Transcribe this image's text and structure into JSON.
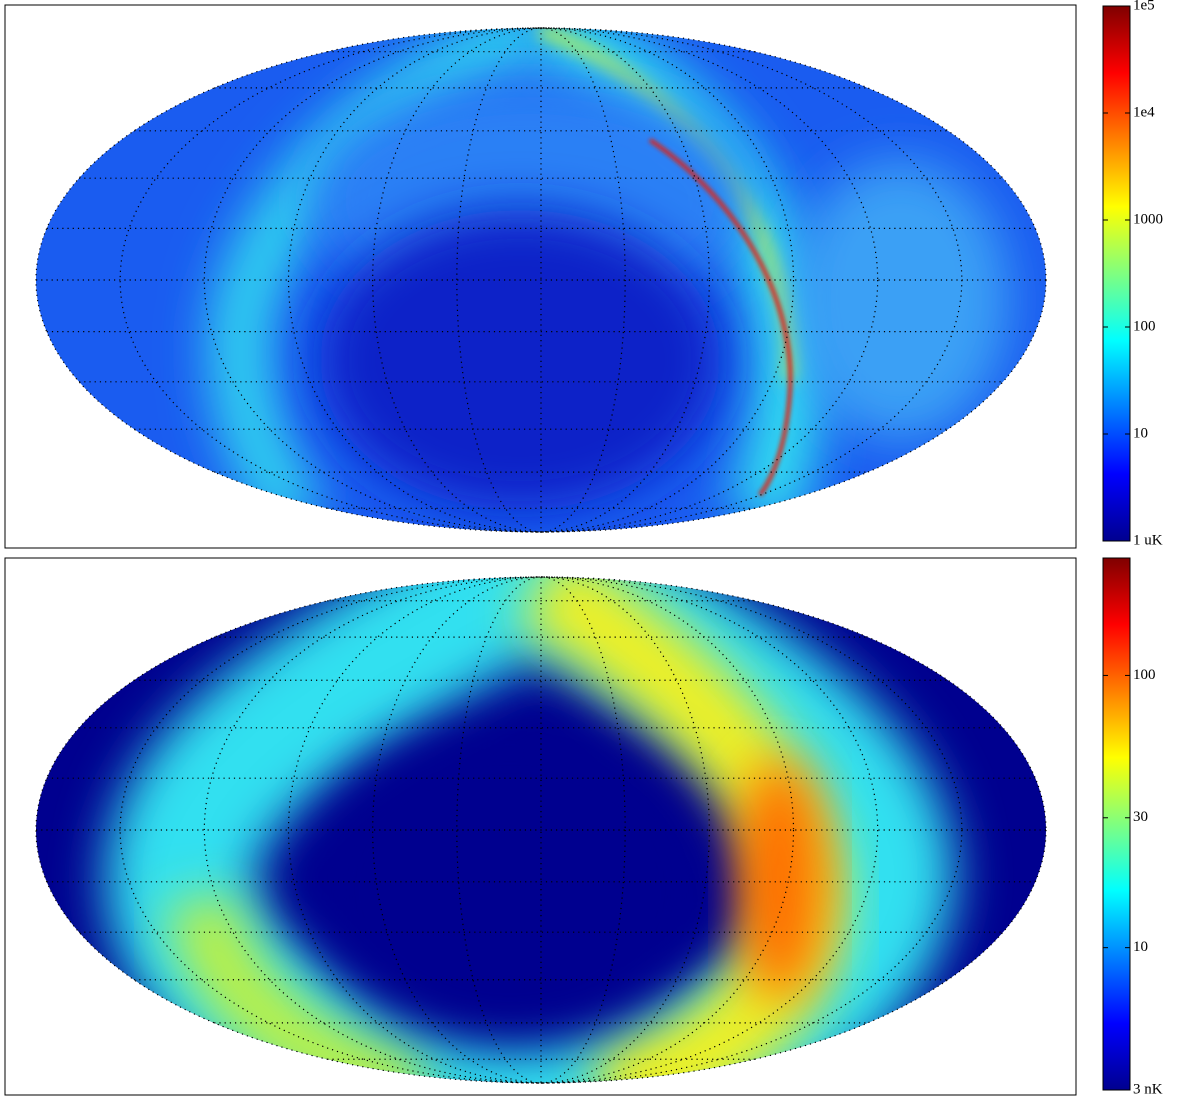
{
  "chart_data": [
    {
      "type": "map",
      "zscale": "log",
      "colormap": "jet",
      "zlim": [
        1,
        100000
      ],
      "zticks": [
        {
          "value": 1,
          "label": "1 uK"
        },
        10,
        100,
        1000,
        {
          "value": 10000,
          "label": "1e4"
        },
        {
          "value": 100000,
          "label": "1e5"
        }
      ]
    },
    {
      "type": "map",
      "zscale": "log",
      "colormap": "jet",
      "zlim": [
        3,
        270
      ],
      "zticks": [
        {
          "value": 3,
          "label": "3 nK"
        },
        10,
        30,
        100
      ]
    }
  ]
}
